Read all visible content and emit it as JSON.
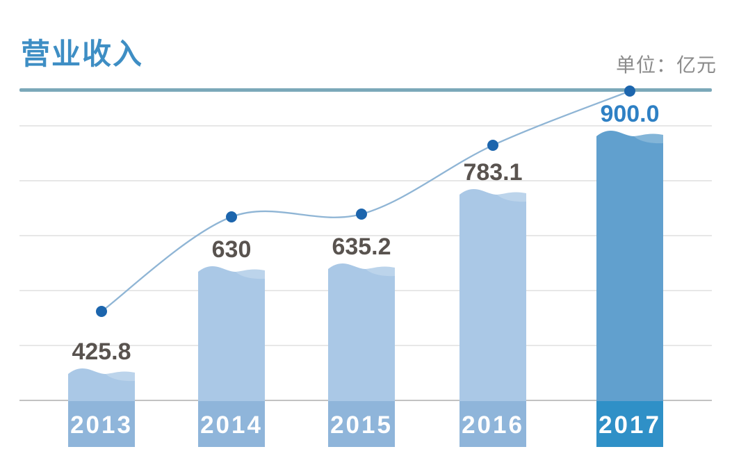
{
  "page": {
    "background": "#ffffff"
  },
  "header": {
    "title": "营业收入",
    "unit_label": "单位：亿元"
  },
  "chart_data": {
    "type": "bar",
    "subtype": "bar-with-line-overlay",
    "title": "营业收入",
    "unit": "亿元",
    "categories": [
      "2013",
      "2014",
      "2015",
      "2016",
      "2017"
    ],
    "values": [
      425.8,
      630,
      635.2,
      783.1,
      900.0
    ],
    "value_labels": [
      "425.8",
      "630",
      "635.2",
      "783.1",
      "900.0"
    ],
    "series": [
      {
        "name": "营业收入",
        "values": [
          425.8,
          630,
          635.2,
          783.1,
          900.0
        ]
      }
    ],
    "highlighted_index": 4,
    "legend": "none",
    "grid": true,
    "gridline_count": 6,
    "y_axis_ticks_labeled": false,
    "bar_style": "wavy-liquid-top",
    "category_labels_inside_bar_base": true
  },
  "colors": {
    "title": "#3e8ec4",
    "title_underline": "#7ba8b9",
    "unit_label": "#8b8b8b",
    "bar_normal": "#aac8e6",
    "bar_normal_base": "#8fb5da",
    "bar_highlight": "#61a0ce",
    "bar_highlight_base": "#2f90c7",
    "line": "#8fb5d5",
    "dot": "#1c65ad",
    "value_label": "#59534f",
    "value_label_highlight": "#2e80c4",
    "category_label": "#ffffff",
    "gridline": "#e7e7e7",
    "baseline": "#c2c2c2"
  }
}
